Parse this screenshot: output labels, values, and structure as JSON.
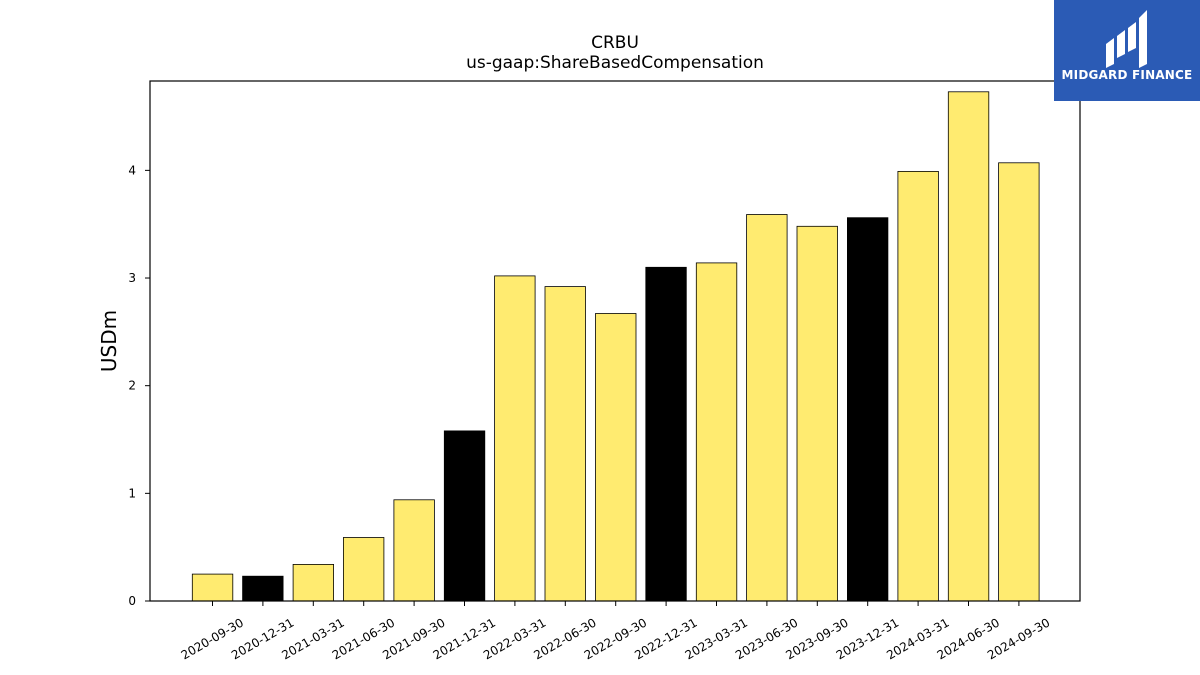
{
  "chart_data": {
    "type": "bar",
    "title": "CRBU",
    "subtitle": "us-gaap:ShareBasedCompensation",
    "ylabel": "USDm",
    "xlabel": "",
    "ylim": [
      0,
      4.83
    ],
    "yticks": [
      0,
      1,
      2,
      3,
      4
    ],
    "categories": [
      "2020-09-30",
      "2020-12-31",
      "2021-03-31",
      "2021-06-30",
      "2021-09-30",
      "2021-12-31",
      "2022-03-31",
      "2022-06-30",
      "2022-09-30",
      "2022-12-31",
      "2023-03-31",
      "2023-06-30",
      "2023-09-30",
      "2023-12-31",
      "2024-03-31",
      "2024-06-30",
      "2024-09-30"
    ],
    "values": [
      0.25,
      0.23,
      0.34,
      0.59,
      0.94,
      1.58,
      3.02,
      2.92,
      2.67,
      3.1,
      3.14,
      3.59,
      3.48,
      3.56,
      3.99,
      4.73,
      4.07
    ],
    "bar_colors": [
      "#ffeb70",
      "#000000",
      "#ffeb70",
      "#ffeb70",
      "#ffeb70",
      "#000000",
      "#ffeb70",
      "#ffeb70",
      "#ffeb70",
      "#000000",
      "#ffeb70",
      "#ffeb70",
      "#ffeb70",
      "#000000",
      "#ffeb70",
      "#ffeb70",
      "#ffeb70"
    ],
    "grid": false,
    "legend": "none"
  },
  "logo": {
    "text": "MIDGARD FINANCE",
    "background": "#2b5bb5"
  }
}
